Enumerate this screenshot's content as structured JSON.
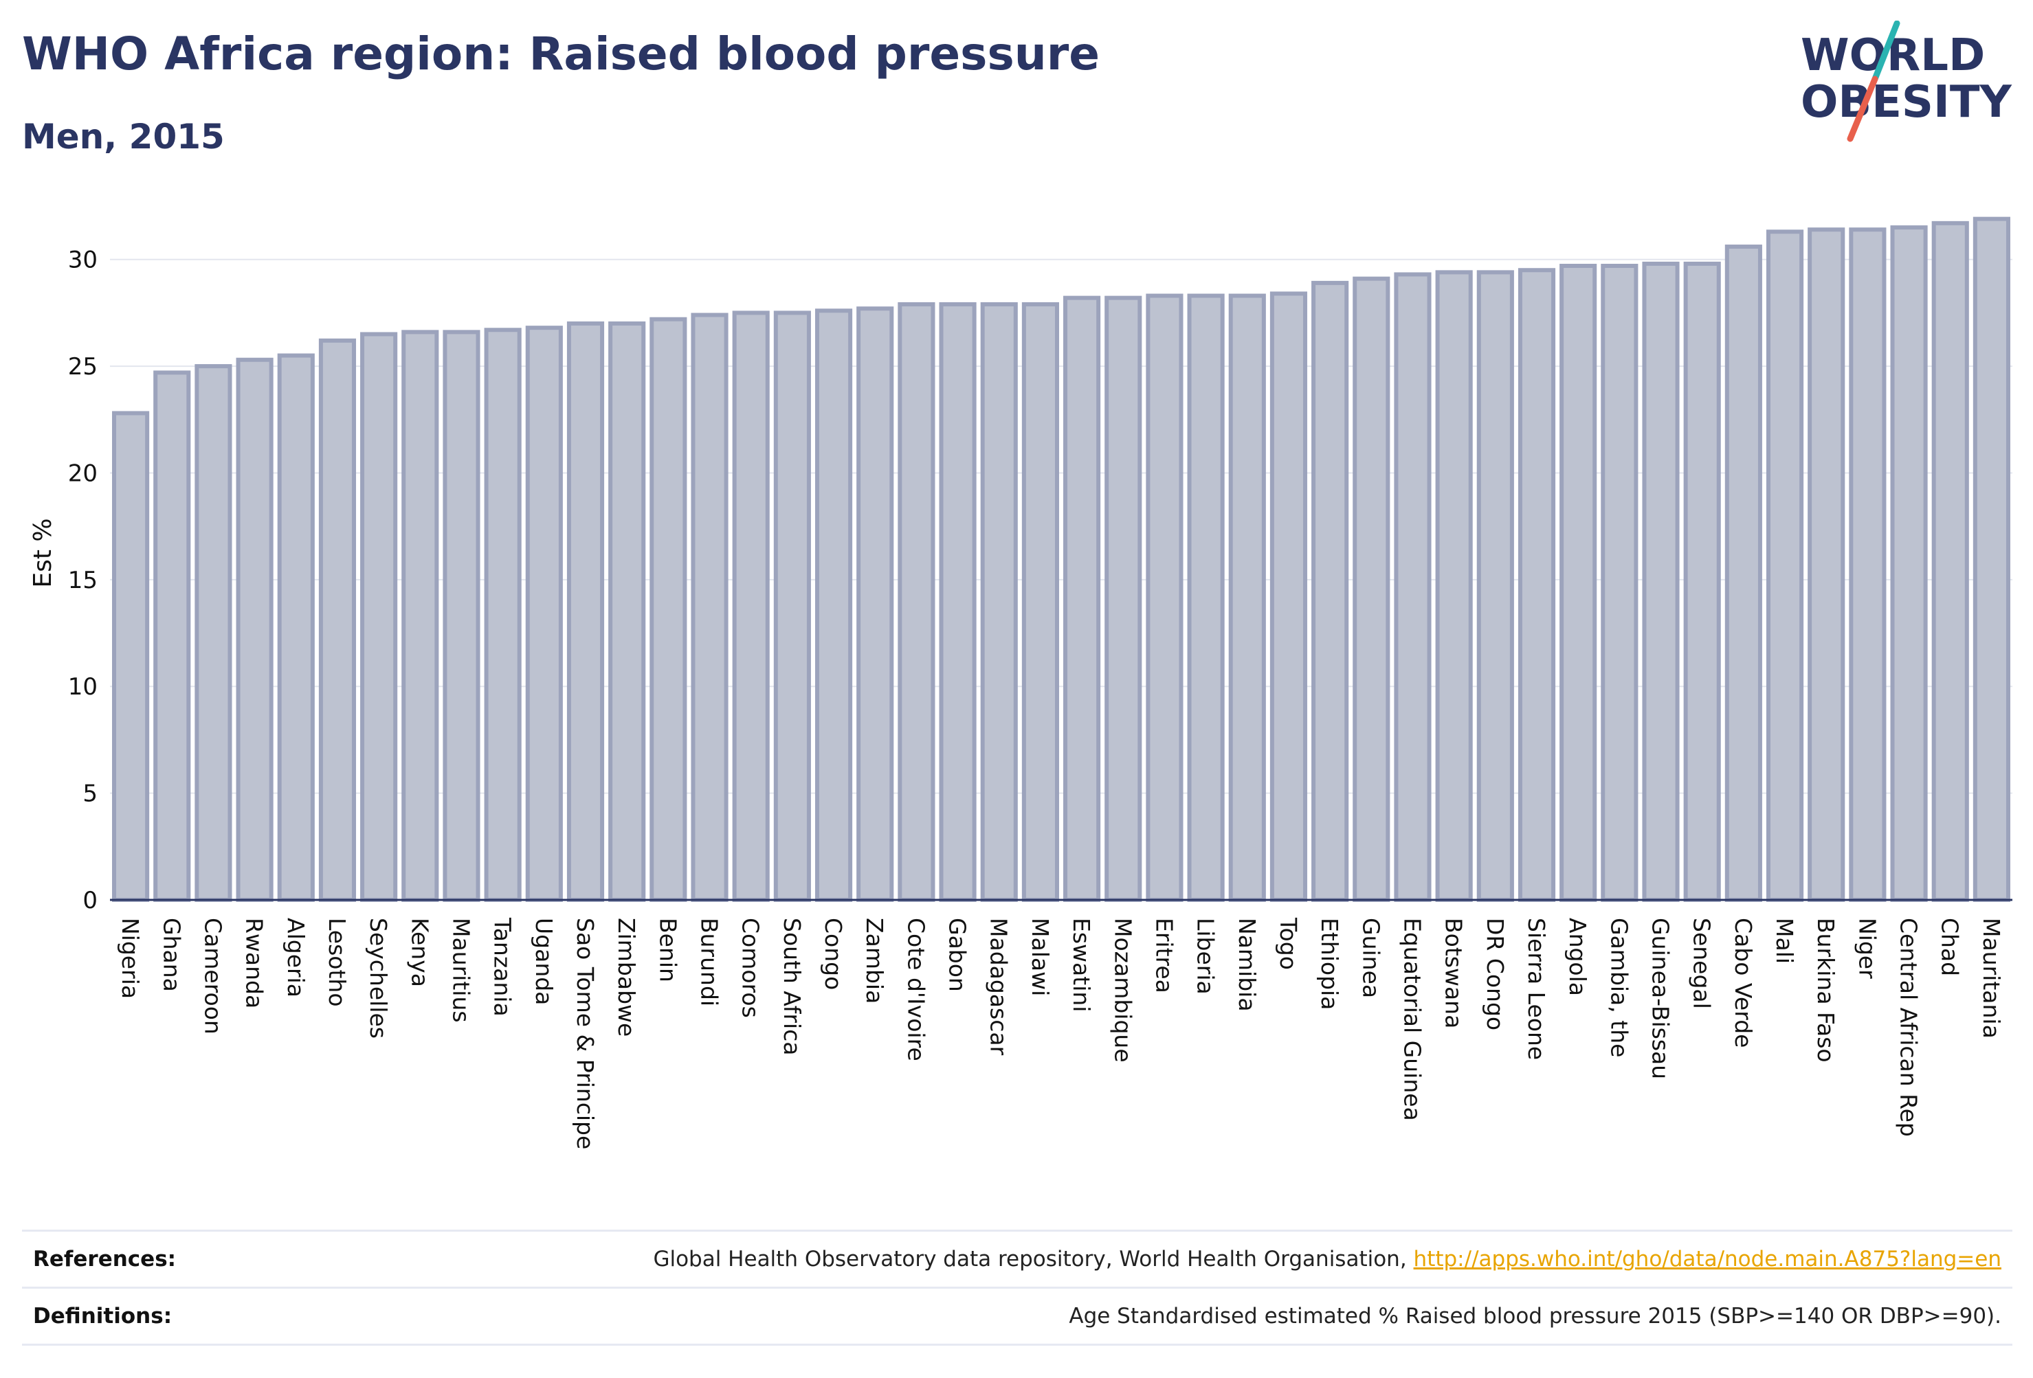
{
  "chart_data": {
    "type": "bar",
    "title": "WHO Africa region: Raised blood pressure",
    "subtitle": "Men, 2015",
    "xlabel": "",
    "ylabel": "Est %",
    "ylim": [
      0,
      32.5
    ],
    "yticks": [
      "0",
      "5",
      "10",
      "15",
      "20",
      "25",
      "30"
    ],
    "grid": true,
    "legend": "none",
    "categories": [
      "Nigeria",
      "Ghana",
      "Cameroon",
      "Rwanda",
      "Algeria",
      "Lesotho",
      "Seychelles",
      "Kenya",
      "Mauritius",
      "Tanzania",
      "Uganda",
      "Sao Tome & Principe",
      "Zimbabwe",
      "Benin",
      "Burundi",
      "Comoros",
      "South Africa",
      "Congo",
      "Zambia",
      "Cote d'Ivoire",
      "Gabon",
      "Madagascar",
      "Malawi",
      "Eswatini",
      "Mozambique",
      "Eritrea",
      "Liberia",
      "Namibia",
      "Togo",
      "Ethiopia",
      "Guinea",
      "Equatorial Guinea",
      "Botswana",
      "DR Congo",
      "Sierra Leone",
      "Angola",
      "Gambia, the",
      "Guinea-Bissau",
      "Senegal",
      "Cabo Verde",
      "Mali",
      "Burkina Faso",
      "Niger",
      "Central African Rep",
      "Chad",
      "Mauritania"
    ],
    "values": [
      22.8,
      24.7,
      25.0,
      25.3,
      25.5,
      26.2,
      26.5,
      26.6,
      26.6,
      26.7,
      26.8,
      27.0,
      27.0,
      27.2,
      27.4,
      27.5,
      27.5,
      27.6,
      27.7,
      27.9,
      27.9,
      27.9,
      27.9,
      28.2,
      28.2,
      28.3,
      28.3,
      28.3,
      28.4,
      28.9,
      29.1,
      29.3,
      29.4,
      29.4,
      29.5,
      29.7,
      29.7,
      29.8,
      29.8,
      30.6,
      31.3,
      31.4,
      31.4,
      31.5,
      31.7,
      31.9
    ],
    "colors": {
      "bar_fill": "#bdc2d0",
      "bar_stroke": "#9ca3bc",
      "axis": "#2a3563",
      "grid": "#e3e6ee"
    }
  },
  "logo": {
    "line1": "WORLD",
    "line2": "OBESITY",
    "colors": {
      "text": "#2a3563",
      "slash_top": "#2ab3b1",
      "slash_bottom": "#e8604c"
    }
  },
  "footer": {
    "references_label": "References:",
    "references_text": "Global Health Observatory data repository, World Health Organisation, ",
    "references_link": "http://apps.who.int/gho/data/node.main.A875?lang=en",
    "definitions_label": "Definitions:",
    "definitions_text": "Age Standardised estimated % Raised blood pressure 2015 (SBP>=140 OR DBP>=90)."
  }
}
